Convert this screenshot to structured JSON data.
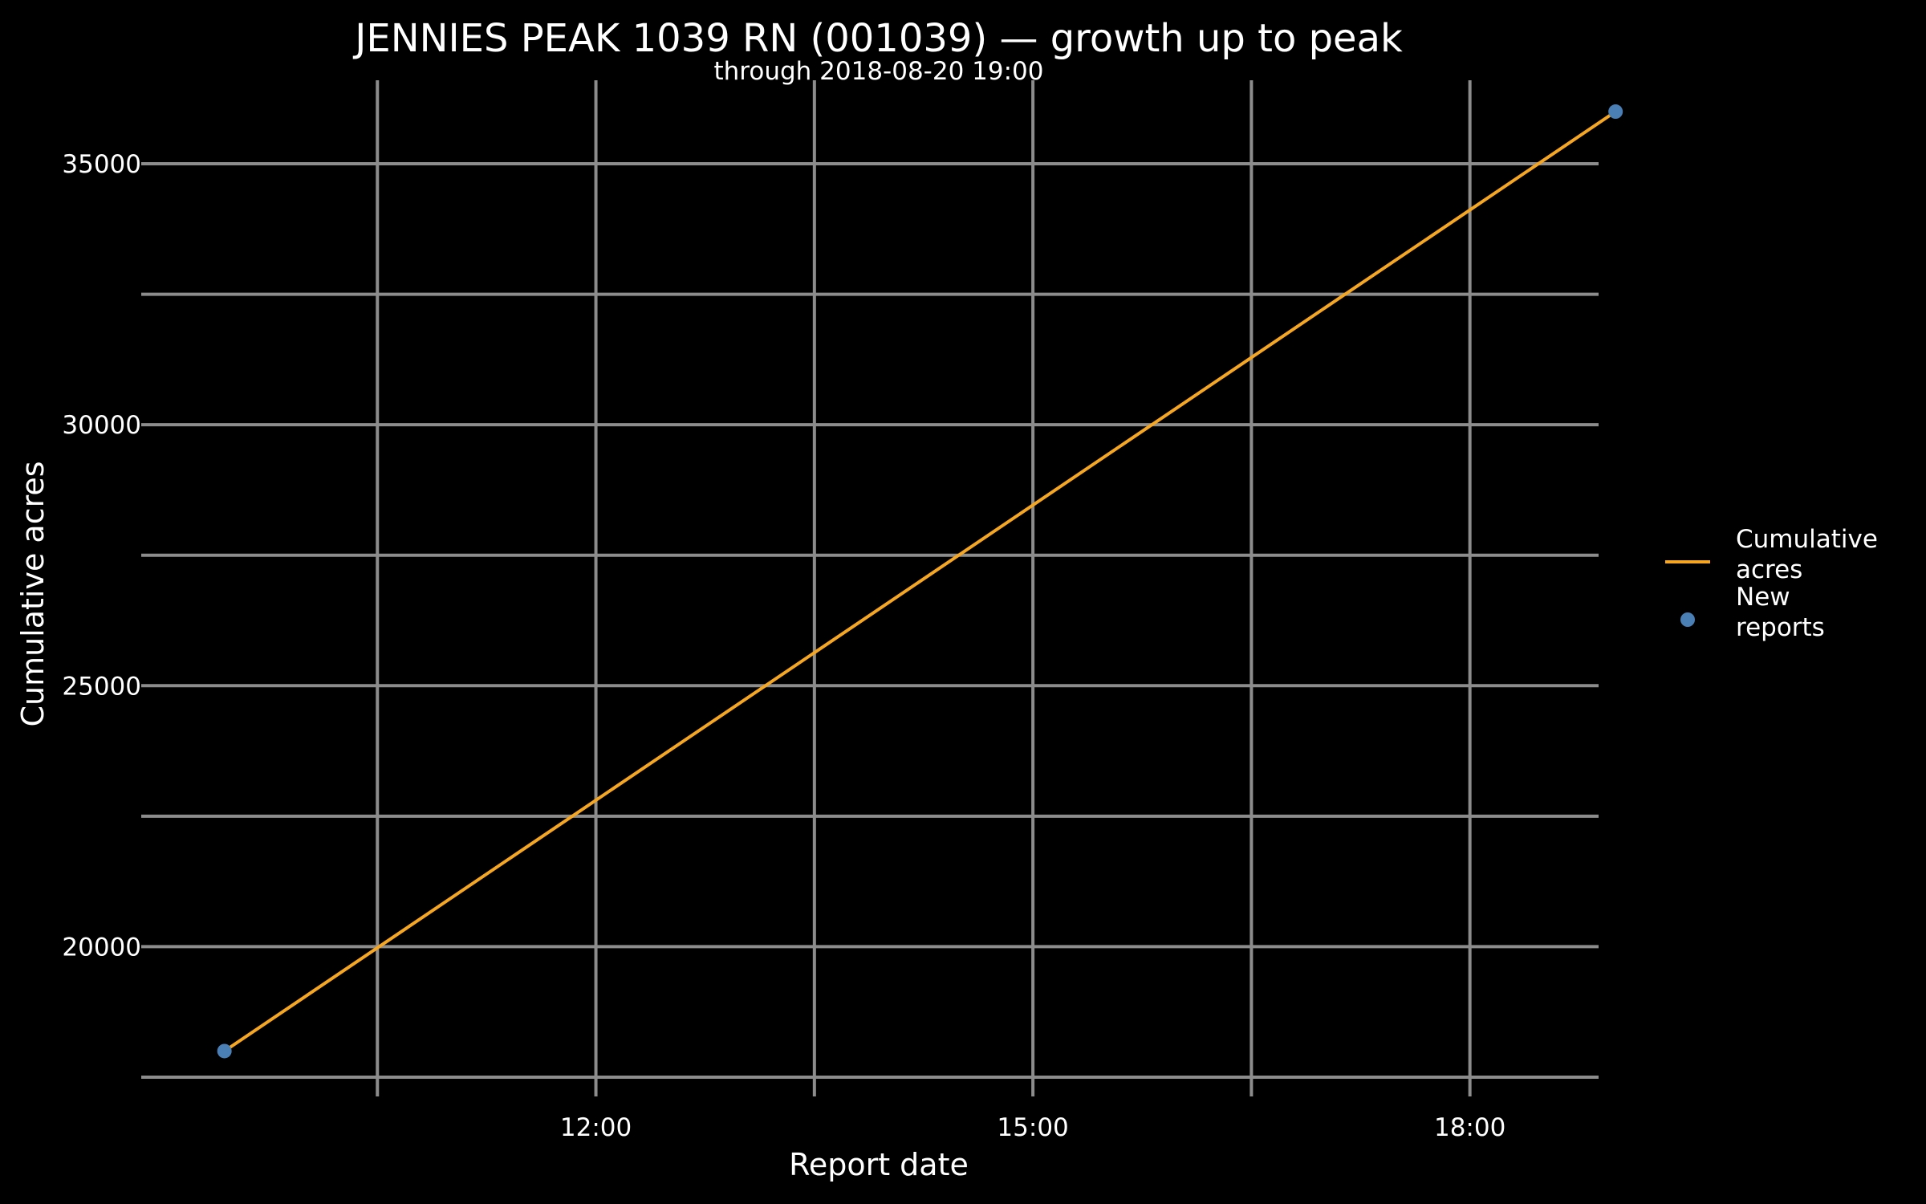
{
  "chart_data": {
    "type": "line",
    "title": "JENNIES PEAK 1039 RN (001039) — growth up to peak",
    "subtitle": "through 2018-08-20 19:00",
    "xlabel": "Report date",
    "ylabel": "Cumulative acres",
    "x_tick_labels": [
      "12:00",
      "15:00",
      "18:00"
    ],
    "x_ticks": [
      "2018-08-20 12:00",
      "2018-08-20 15:00",
      "2018-08-20 18:00"
    ],
    "x_gridlines": [
      "2018-08-20 10:30",
      "2018-08-20 12:00",
      "2018-08-20 13:30",
      "2018-08-20 15:00",
      "2018-08-20 16:30",
      "2018-08-20 18:00"
    ],
    "xlim": [
      "2018-08-20 09:00",
      "2018-08-20 18:53"
    ],
    "y_ticks": [
      20000,
      25000,
      30000,
      35000
    ],
    "y_gridlines": [
      17500,
      20000,
      22500,
      25000,
      27500,
      30000,
      32500,
      35000
    ],
    "ylim": [
      17500,
      36600
    ],
    "grid": true,
    "legend_position": "right",
    "series": [
      {
        "name": "Cumulative acres",
        "kind": "line",
        "color": "#f5a623",
        "points": [
          {
            "x": "2018-08-20 09:27",
            "y": 18000
          },
          {
            "x": "2018-08-20 19:00",
            "y": 36000
          }
        ]
      },
      {
        "name": "New reports",
        "kind": "scatter",
        "color": "#4a7fb5",
        "points": [
          {
            "x": "2018-08-20 09:27",
            "y": 18000
          },
          {
            "x": "2018-08-20 19:00",
            "y": 36000
          }
        ]
      }
    ],
    "legend": [
      {
        "lines": [
          "Cumulative",
          "acres"
        ],
        "kind": "line",
        "color": "#f5a623"
      },
      {
        "lines": [
          "New",
          "reports"
        ],
        "kind": "point",
        "color": "#4a7fb5"
      }
    ]
  }
}
